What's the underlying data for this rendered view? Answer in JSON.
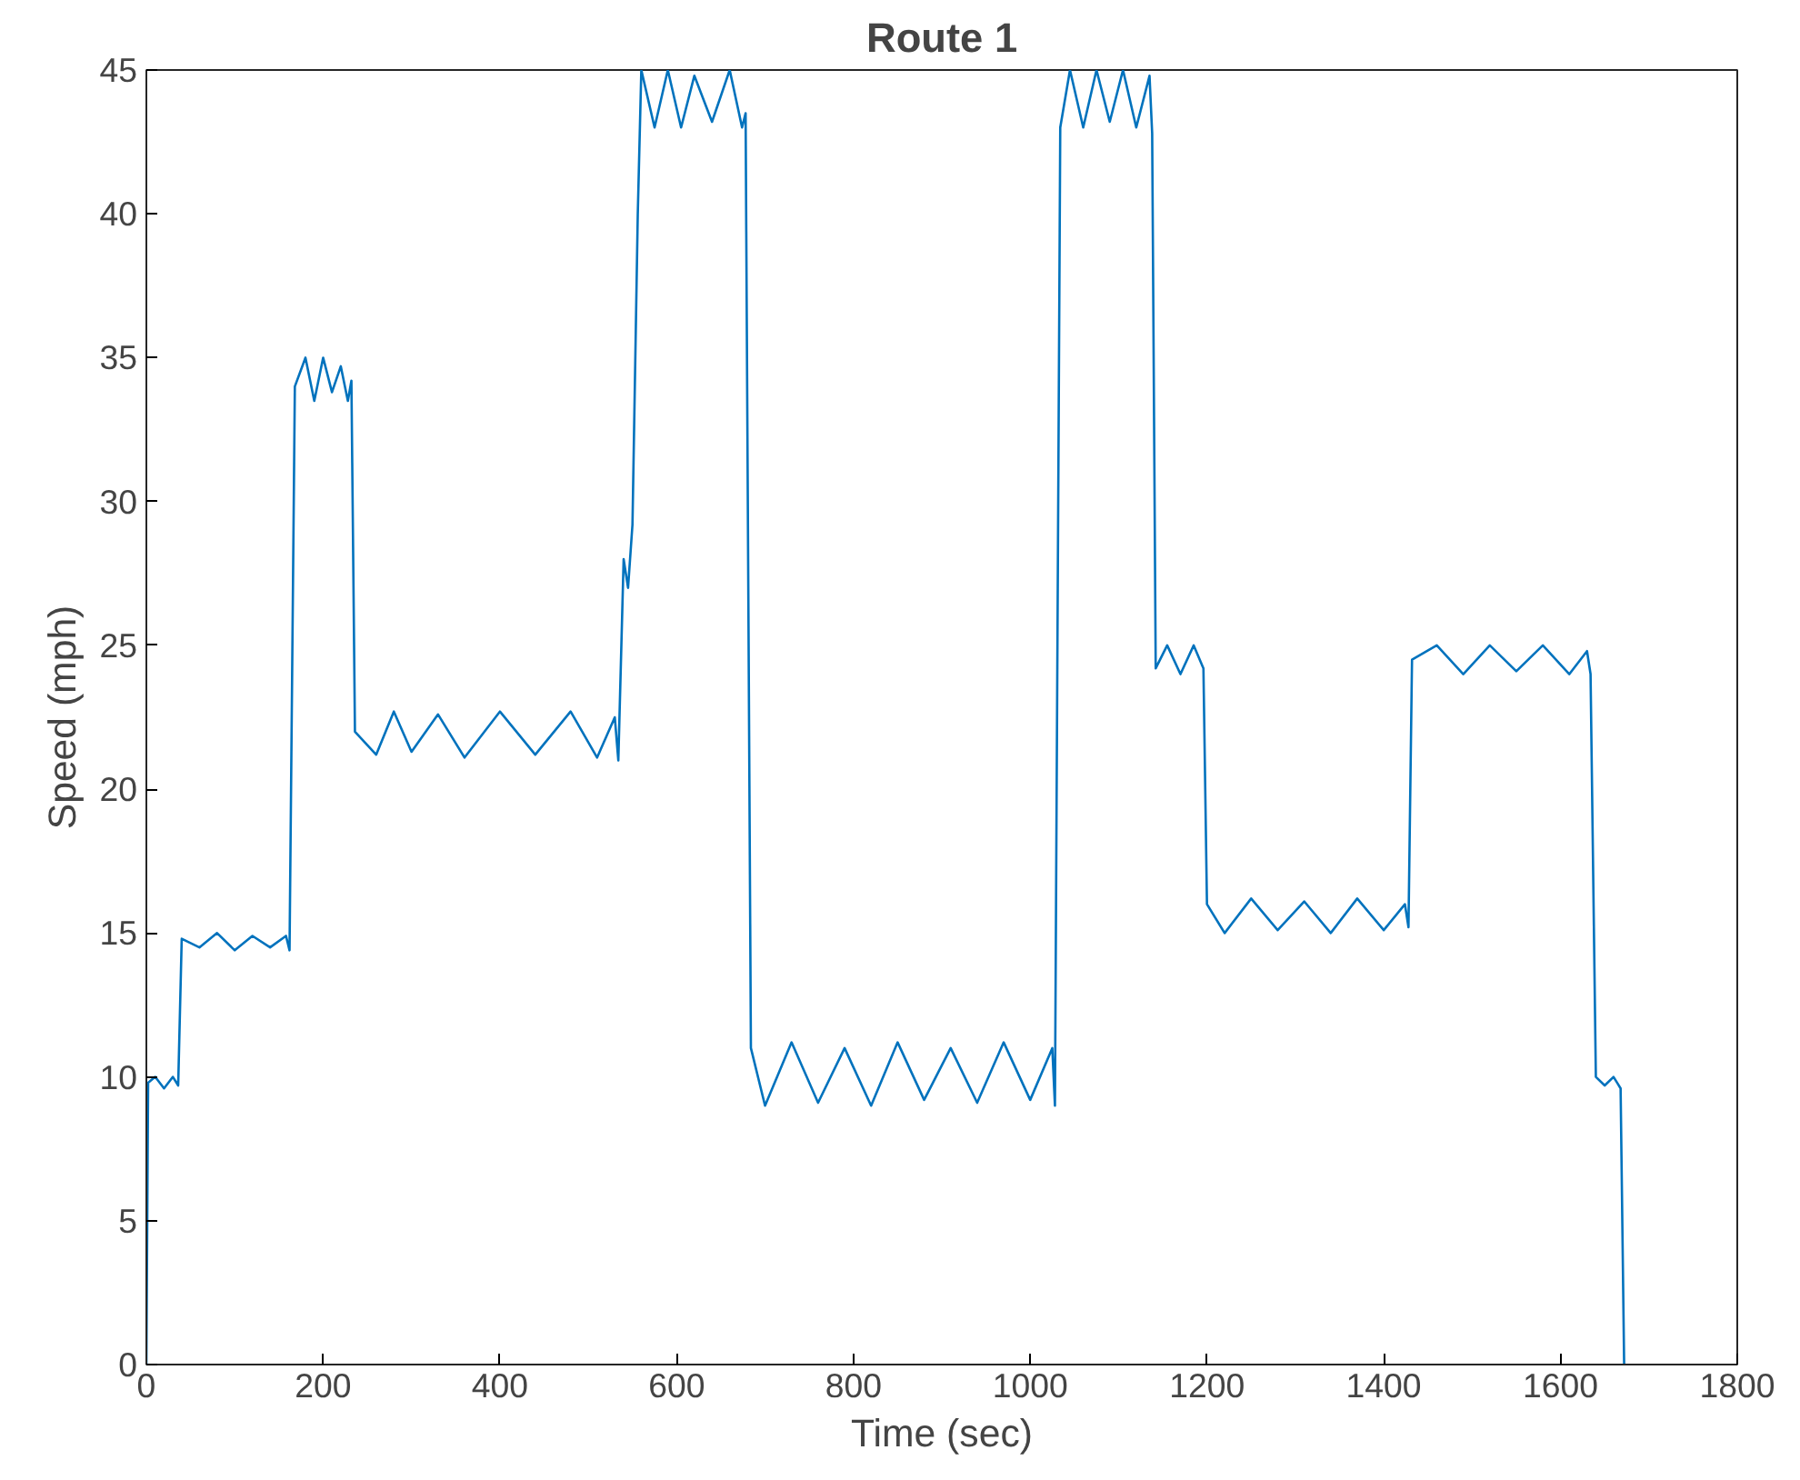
{
  "chart_data": {
    "type": "line",
    "title": "Route 1",
    "xlabel": "Time (sec)",
    "ylabel": "Speed (mph)",
    "x": [
      0,
      2,
      10,
      20,
      30,
      36,
      40,
      60,
      80,
      100,
      120,
      140,
      158,
      162,
      168,
      180,
      190,
      200,
      210,
      220,
      228,
      232,
      236,
      260,
      280,
      300,
      330,
      360,
      400,
      440,
      480,
      510,
      530,
      534,
      540,
      545,
      550,
      556,
      560,
      575,
      590,
      605,
      620,
      640,
      660,
      674,
      678,
      684,
      700,
      730,
      760,
      790,
      820,
      850,
      880,
      910,
      940,
      970,
      1000,
      1025,
      1028,
      1034,
      1045,
      1060,
      1075,
      1090,
      1105,
      1120,
      1135,
      1138,
      1142,
      1155,
      1170,
      1185,
      1196,
      1200,
      1220,
      1250,
      1280,
      1310,
      1340,
      1370,
      1400,
      1424,
      1428,
      1432,
      1460,
      1490,
      1520,
      1550,
      1580,
      1610,
      1630,
      1634,
      1640,
      1650,
      1660,
      1668,
      1672
    ],
    "series": [
      {
        "color": "#0072bd",
        "values": [
          0,
          9.8,
          10,
          9.6,
          10,
          9.7,
          14.8,
          14.5,
          15,
          14.4,
          14.9,
          14.5,
          14.9,
          14.4,
          34,
          35,
          33.5,
          35,
          33.8,
          34.7,
          33.5,
          34.2,
          22,
          21.2,
          22.7,
          21.3,
          22.6,
          21.1,
          22.7,
          21.2,
          22.7,
          21.1,
          22.5,
          21,
          28,
          27,
          29.2,
          40,
          45,
          43,
          45,
          43,
          44.8,
          43.2,
          45,
          43,
          43.5,
          11,
          9,
          11.2,
          9.1,
          11,
          9,
          11.2,
          9.2,
          11,
          9.1,
          11.2,
          9.2,
          11,
          9,
          43,
          45,
          43,
          45,
          43.2,
          45,
          43,
          44.8,
          42.8,
          24.2,
          25,
          24,
          25,
          24.2,
          16,
          15,
          16.2,
          15.1,
          16.1,
          15,
          16.2,
          15.1,
          16,
          15.2,
          24.5,
          25,
          24,
          25,
          24.1,
          25,
          24,
          24.8,
          24,
          10,
          9.7,
          10,
          9.6,
          0
        ]
      }
    ],
    "xlim": [
      0,
      1800
    ],
    "ylim": [
      0,
      45
    ],
    "xticks": [
      0,
      200,
      400,
      600,
      800,
      1000,
      1200,
      1400,
      1600,
      1800
    ],
    "yticks": [
      0,
      5,
      10,
      15,
      20,
      25,
      30,
      35,
      40,
      45
    ],
    "grid": false,
    "marker": "none",
    "line_style": "solid"
  }
}
